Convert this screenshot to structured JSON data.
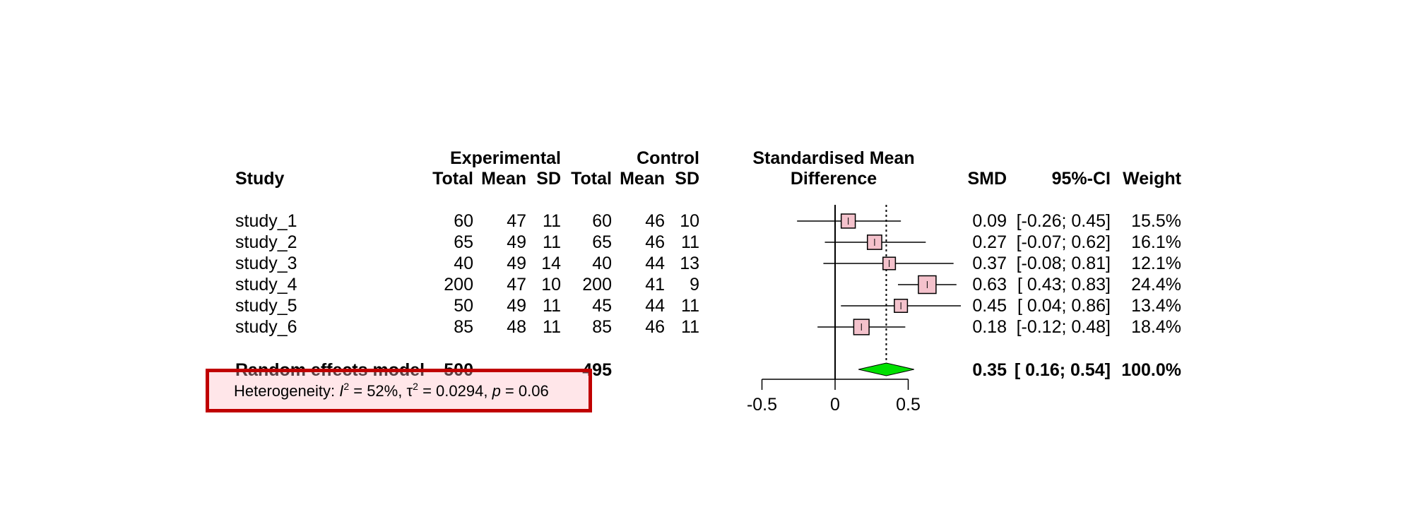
{
  "headers": {
    "experimental": "Experimental",
    "control": "Control",
    "study": "Study",
    "total_e": "Total",
    "mean_e": "Mean",
    "sd_e": "SD",
    "total_c": "Total",
    "mean_c": "Mean",
    "sd_c": "SD",
    "effect_line1": "Standardised Mean",
    "effect_line2": "Difference",
    "smd": "SMD",
    "ci": "95%-CI",
    "weight": "Weight"
  },
  "rows": [
    {
      "study": "study_1",
      "n_e": "60",
      "mean_e": "47",
      "sd_e": "11",
      "n_c": "60",
      "mean_c": "46",
      "sd_c": "10",
      "smd": "0.09",
      "ci": "[-0.26; 0.45]",
      "weight": "15.5%"
    },
    {
      "study": "study_2",
      "n_e": "65",
      "mean_e": "49",
      "sd_e": "11",
      "n_c": "65",
      "mean_c": "46",
      "sd_c": "11",
      "smd": "0.27",
      "ci": "[-0.07; 0.62]",
      "weight": "16.1%"
    },
    {
      "study": "study_3",
      "n_e": "40",
      "mean_e": "49",
      "sd_e": "14",
      "n_c": "40",
      "mean_c": "44",
      "sd_c": "13",
      "smd": "0.37",
      "ci": "[-0.08; 0.81]",
      "weight": "12.1%"
    },
    {
      "study": "study_4",
      "n_e": "200",
      "mean_e": "47",
      "sd_e": "10",
      "n_c": "200",
      "mean_c": "41",
      "sd_c": "9",
      "smd": "0.63",
      "ci": "[ 0.43; 0.83]",
      "weight": "24.4%"
    },
    {
      "study": "study_5",
      "n_e": "50",
      "mean_e": "49",
      "sd_e": "11",
      "n_c": "45",
      "mean_c": "44",
      "sd_c": "11",
      "smd": "0.45",
      "ci": "[ 0.04; 0.86]",
      "weight": "13.4%"
    },
    {
      "study": "study_6",
      "n_e": "85",
      "mean_e": "48",
      "sd_e": "11",
      "n_c": "85",
      "mean_c": "46",
      "sd_c": "11",
      "smd": "0.18",
      "ci": "[-0.12; 0.48]",
      "weight": "18.4%"
    }
  ],
  "summary": {
    "label": "Random effects model",
    "n_e": "500",
    "n_c": "495",
    "smd": "0.35",
    "ci": "[ 0.16; 0.54]",
    "weight": "100.0%"
  },
  "heterogeneity": {
    "prefix": "Heterogeneity: ",
    "i2_symbol": "I",
    "i2_value": " = 52%, ",
    "tau_symbol": "τ",
    "tau_value": " = 0.0294, ",
    "p_symbol": "p",
    "p_value": " = 0.06"
  },
  "chart_data": {
    "type": "forest",
    "x_ticks": [
      "-0.5",
      "0",
      "0.5"
    ],
    "xlim": [
      -0.5,
      0.5
    ],
    "studies": [
      {
        "name": "study_1",
        "smd": 0.09,
        "lower": -0.26,
        "upper": 0.45,
        "weight": 15.5
      },
      {
        "name": "study_2",
        "smd": 0.27,
        "lower": -0.07,
        "upper": 0.62,
        "weight": 16.1
      },
      {
        "name": "study_3",
        "smd": 0.37,
        "lower": -0.08,
        "upper": 0.81,
        "weight": 12.1
      },
      {
        "name": "study_4",
        "smd": 0.63,
        "lower": 0.43,
        "upper": 0.83,
        "weight": 24.4
      },
      {
        "name": "study_5",
        "smd": 0.45,
        "lower": 0.04,
        "upper": 0.86,
        "weight": 13.4
      },
      {
        "name": "study_6",
        "smd": 0.18,
        "lower": -0.12,
        "upper": 0.48,
        "weight": 18.4
      }
    ],
    "pooled": {
      "smd": 0.35,
      "lower": 0.16,
      "upper": 0.54
    },
    "colors": {
      "square_fill": "#f4c2cc",
      "diamond_fill": "#00e000",
      "line": "#000000"
    }
  }
}
